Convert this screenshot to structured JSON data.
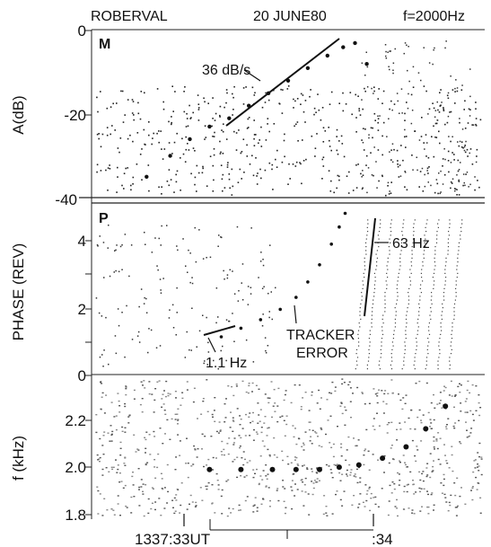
{
  "header": {
    "station": "ROBERVAL",
    "date": "20 JUNE80",
    "frequency": "f=2000Hz"
  },
  "chart_data": [
    {
      "type": "scatter",
      "panel_letter": "M",
      "ylabel": "A(dB)",
      "yticks": [
        "0",
        "-20",
        "-40"
      ],
      "ylim": [
        -40,
        0
      ],
      "annotations": [
        {
          "text": "36 dB/s",
          "slope_db_per_s": 36
        }
      ],
      "series": [
        {
          "x": [
            0.14,
            0.2,
            0.25,
            0.3,
            0.35,
            0.4,
            0.45,
            0.5,
            0.55,
            0.6,
            0.64,
            0.67,
            0.7
          ],
          "y": [
            -35,
            -30,
            -26,
            -23,
            -21,
            -18,
            -15,
            -12,
            -9,
            -6,
            -4,
            -3,
            -8
          ]
        }
      ]
    },
    {
      "type": "line",
      "panel_letter": "P",
      "ylabel": "PHASE (REV)",
      "yticks": [
        "0",
        "2",
        "4"
      ],
      "ylim": [
        0,
        5
      ],
      "annotations": [
        {
          "text": "63 Hz"
        },
        {
          "text": "TRACKER",
          "text2": "ERROR"
        },
        {
          "text": "1.1 Hz"
        }
      ],
      "series": [
        {
          "x": [
            0.33,
            0.38,
            0.43,
            0.48,
            0.52,
            0.55,
            0.58,
            0.61,
            0.63,
            0.645
          ],
          "y": [
            1.1,
            1.35,
            1.6,
            1.9,
            2.25,
            2.7,
            3.2,
            3.8,
            4.3,
            4.7
          ]
        }
      ]
    },
    {
      "type": "heatmap",
      "ylabel": "f (kHz)",
      "yticks": [
        "1.8",
        "2.0",
        "2.2"
      ],
      "ylim": [
        1.78,
        2.42
      ],
      "xlabels": [
        "1337:33UT",
        ":34"
      ],
      "series": [
        {
          "x": [
            0.3,
            0.38,
            0.46,
            0.52,
            0.58,
            0.63,
            0.68,
            0.74,
            0.8,
            0.85,
            0.9
          ],
          "y": [
            2.0,
            2.0,
            2.0,
            2.0,
            2.0,
            2.01,
            2.02,
            2.05,
            2.1,
            2.18,
            2.28
          ]
        }
      ]
    }
  ]
}
